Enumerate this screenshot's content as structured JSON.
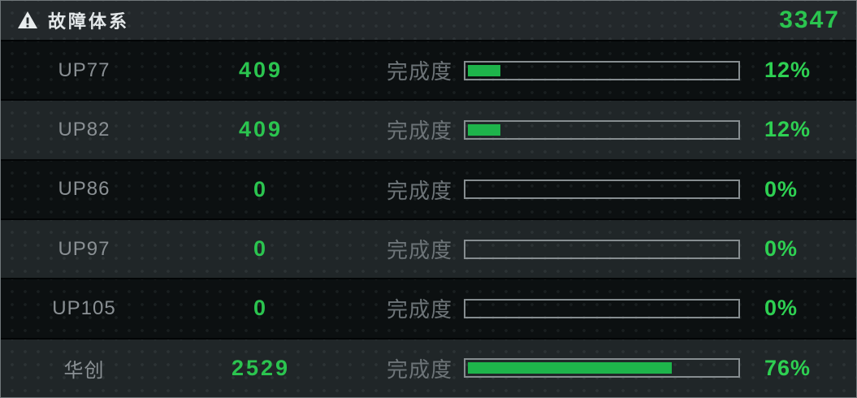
{
  "panel": {
    "title": "故障体系",
    "total": "3347",
    "progress_label": "完成度"
  },
  "icons": {
    "header_icon": "warning-triangle"
  },
  "colors": {
    "panel_border": "#70777a",
    "header_bg": "#23282b",
    "row_dark_bg": "#0c1011",
    "row_light_bg": "#202628",
    "label_gray": "#8a9094",
    "caption_gray": "#6d7478",
    "accent_green": "#2bc44f",
    "bar_fill_green": "#1eb44b",
    "bar_border_gray": "#868d90",
    "title_white": "#e4e8ea"
  },
  "rows": [
    {
      "name": "UP77",
      "value": "409",
      "percent": 12,
      "percent_label": "12%"
    },
    {
      "name": "UP82",
      "value": "409",
      "percent": 12,
      "percent_label": "12%"
    },
    {
      "name": "UP86",
      "value": "0",
      "percent": 0,
      "percent_label": "0%"
    },
    {
      "name": "UP97",
      "value": "0",
      "percent": 0,
      "percent_label": "0%"
    },
    {
      "name": "UP105",
      "value": "0",
      "percent": 0,
      "percent_label": "0%"
    },
    {
      "name": "华创",
      "value": "2529",
      "percent": 76,
      "percent_label": "76%"
    }
  ]
}
